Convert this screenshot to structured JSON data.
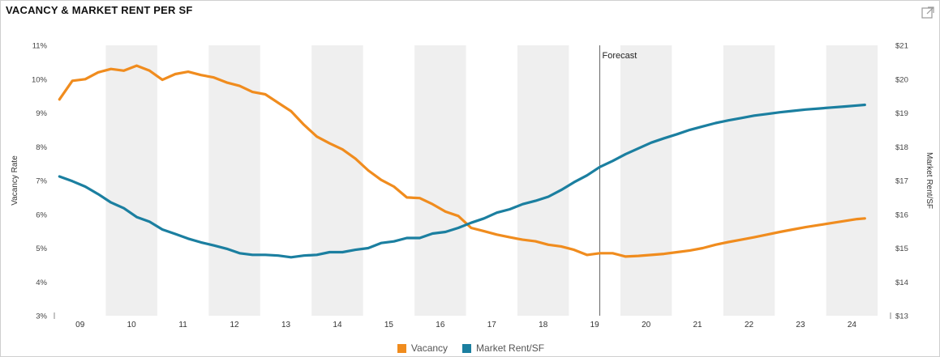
{
  "title": "VACANCY & MARKET RENT PER SF",
  "chart_data": {
    "type": "line",
    "left_axis": {
      "label": "Vacancy Rate",
      "range": [
        3,
        11
      ],
      "ticks": [
        "3%",
        "4%",
        "5%",
        "6%",
        "7%",
        "8%",
        "9%",
        "10%",
        "11%"
      ]
    },
    "right_axis": {
      "label": "Market Rent/SF",
      "range": [
        13,
        21
      ],
      "ticks": [
        "$13",
        "$14",
        "$15",
        "$16",
        "$17",
        "$18",
        "$19",
        "$20",
        "$21"
      ]
    },
    "x_axis": {
      "range": [
        2008.5,
        2024.75
      ],
      "ticks": [
        "09",
        "10",
        "11",
        "12",
        "13",
        "14",
        "15",
        "16",
        "17",
        "18",
        "19",
        "20",
        "21",
        "22",
        "23",
        "24"
      ]
    },
    "shaded_years": [
      "10",
      "12",
      "14",
      "16",
      "18",
      "20",
      "22",
      "24"
    ],
    "forecast_marker": {
      "x": 2019.1,
      "label": "Forecast"
    },
    "series": [
      {
        "name": "Vacancy",
        "axis": "left",
        "color": "#f08c1e",
        "x": [
          2008.6,
          2008.85,
          2009.1,
          2009.35,
          2009.6,
          2009.85,
          2010.1,
          2010.35,
          2010.6,
          2010.85,
          2011.1,
          2011.35,
          2011.6,
          2011.85,
          2012.1,
          2012.35,
          2012.6,
          2012.85,
          2013.1,
          2013.35,
          2013.6,
          2013.85,
          2014.1,
          2014.35,
          2014.6,
          2014.85,
          2015.1,
          2015.35,
          2015.6,
          2015.85,
          2016.1,
          2016.35,
          2016.6,
          2016.85,
          2017.1,
          2017.35,
          2017.6,
          2017.85,
          2018.1,
          2018.35,
          2018.6,
          2018.85,
          2019.1,
          2019.35,
          2019.6,
          2019.85,
          2020.1,
          2020.35,
          2020.6,
          2020.85,
          2021.1,
          2021.35,
          2021.6,
          2021.85,
          2022.1,
          2022.35,
          2022.6,
          2022.85,
          2023.1,
          2023.35,
          2023.6,
          2023.85,
          2024.1,
          2024.25
        ],
        "values": [
          9.4,
          9.95,
          10.0,
          10.2,
          10.3,
          10.25,
          10.4,
          10.25,
          9.98,
          10.15,
          10.22,
          10.12,
          10.05,
          9.9,
          9.8,
          9.62,
          9.55,
          9.3,
          9.05,
          8.65,
          8.3,
          8.1,
          7.92,
          7.65,
          7.3,
          7.02,
          6.82,
          6.5,
          6.48,
          6.3,
          6.08,
          5.95,
          5.6,
          5.5,
          5.4,
          5.32,
          5.25,
          5.2,
          5.1,
          5.05,
          4.95,
          4.8,
          4.85,
          4.85,
          4.75,
          4.77,
          4.8,
          4.83,
          4.88,
          4.93,
          5.0,
          5.1,
          5.18,
          5.25,
          5.32,
          5.4,
          5.48,
          5.55,
          5.62,
          5.68,
          5.74,
          5.8,
          5.86,
          5.88
        ]
      },
      {
        "name": "Market Rent/SF",
        "axis": "right",
        "color": "#1b7fa0",
        "x": [
          2008.6,
          2008.85,
          2009.1,
          2009.35,
          2009.6,
          2009.85,
          2010.1,
          2010.35,
          2010.6,
          2010.85,
          2011.1,
          2011.35,
          2011.6,
          2011.85,
          2012.1,
          2012.35,
          2012.6,
          2012.85,
          2013.1,
          2013.35,
          2013.6,
          2013.85,
          2014.1,
          2014.35,
          2014.6,
          2014.85,
          2015.1,
          2015.35,
          2015.6,
          2015.85,
          2016.1,
          2016.35,
          2016.6,
          2016.85,
          2017.1,
          2017.35,
          2017.6,
          2017.85,
          2018.1,
          2018.35,
          2018.6,
          2018.85,
          2019.1,
          2019.35,
          2019.6,
          2019.85,
          2020.1,
          2020.35,
          2020.6,
          2020.85,
          2021.1,
          2021.35,
          2021.6,
          2021.85,
          2022.1,
          2022.35,
          2022.6,
          2022.85,
          2023.1,
          2023.35,
          2023.6,
          2023.85,
          2024.1,
          2024.25
        ],
        "values": [
          17.12,
          16.98,
          16.82,
          16.6,
          16.35,
          16.18,
          15.92,
          15.78,
          15.55,
          15.42,
          15.28,
          15.17,
          15.08,
          14.98,
          14.85,
          14.8,
          14.8,
          14.78,
          14.73,
          14.78,
          14.8,
          14.88,
          14.88,
          14.95,
          15.0,
          15.15,
          15.2,
          15.3,
          15.3,
          15.43,
          15.48,
          15.6,
          15.75,
          15.88,
          16.05,
          16.15,
          16.3,
          16.4,
          16.52,
          16.72,
          16.95,
          17.15,
          17.4,
          17.58,
          17.78,
          17.95,
          18.12,
          18.25,
          18.37,
          18.5,
          18.6,
          18.7,
          18.78,
          18.85,
          18.92,
          18.97,
          19.02,
          19.06,
          19.1,
          19.13,
          19.16,
          19.19,
          19.22,
          19.24
        ]
      }
    ],
    "legend_placement": "bottom-center",
    "grid": false
  }
}
